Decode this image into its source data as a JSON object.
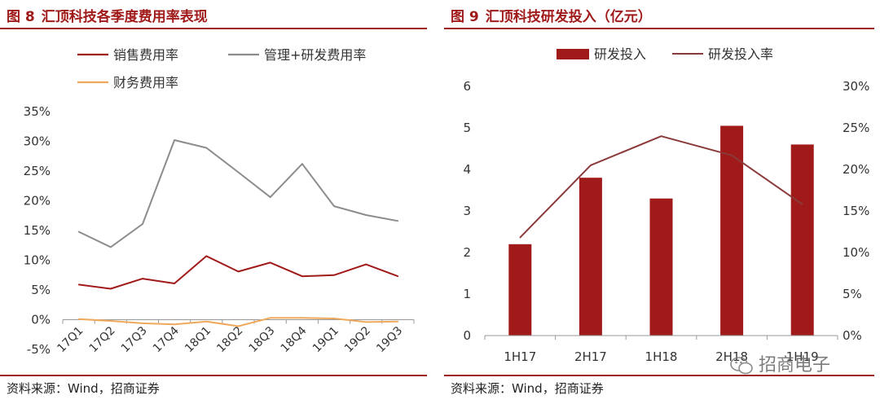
{
  "fig8": {
    "fig_label": "图 8",
    "title": "汇顶科技各季度费用率表现",
    "source": "资料来源：Wind，招商证券",
    "chart_data": {
      "type": "line",
      "categories": [
        "17Q1",
        "17Q2",
        "17Q3",
        "17Q4",
        "18Q1",
        "18Q2",
        "18Q3",
        "18Q4",
        "19Q1",
        "19Q2",
        "19Q3"
      ],
      "series": [
        {
          "name": "销售费用率",
          "color": "#a01a1a",
          "values": [
            5.9,
            5.2,
            6.9,
            6.1,
            10.7,
            8.1,
            9.6,
            7.3,
            7.5,
            9.3,
            7.3
          ]
        },
        {
          "name": "管理+研发费用率",
          "color": "#8c8c8c",
          "values": [
            14.8,
            12.2,
            16.1,
            30.2,
            28.9,
            24.8,
            20.6,
            26.2,
            19.1,
            17.6,
            16.6
          ]
        },
        {
          "name": "财务费用率",
          "color": "#f0a95c",
          "values": [
            0.1,
            -0.2,
            -0.6,
            -0.8,
            -0.3,
            -1.1,
            0.3,
            0.3,
            0.2,
            -0.4,
            -0.3
          ]
        }
      ],
      "yticks": [
        "-5%",
        "0%",
        "5%",
        "10%",
        "15%",
        "20%",
        "25%",
        "30%",
        "35%"
      ],
      "ylim": [
        -5,
        35
      ],
      "legend_position": "top"
    }
  },
  "fig9": {
    "fig_label": "图 9",
    "title": "汇顶科技研发投入（亿元）",
    "source": "资料来源：Wind，招商证券",
    "chart_data": {
      "type": "bar",
      "categories": [
        "1H17",
        "2H17",
        "1H18",
        "2H18",
        "1H19"
      ],
      "series": [
        {
          "name": "研发投入",
          "type": "bar",
          "axis": "left",
          "color": "#a01a1a",
          "values": [
            2.2,
            3.8,
            3.3,
            5.05,
            4.6
          ]
        },
        {
          "name": "研发投入率",
          "type": "line",
          "axis": "right",
          "color": "#8b3a3a",
          "values": [
            11.8,
            20.5,
            24.0,
            21.7,
            15.8
          ]
        }
      ],
      "yticks_left": [
        "0",
        "1",
        "2",
        "3",
        "4",
        "5",
        "6"
      ],
      "yticks_right": [
        "0%",
        "5%",
        "10%",
        "15%",
        "20%",
        "25%",
        "30%"
      ],
      "ylim_left": [
        0,
        6
      ],
      "ylim_right": [
        0,
        30
      ],
      "legend_position": "top"
    }
  },
  "watermark": {
    "text": "招商电子"
  }
}
